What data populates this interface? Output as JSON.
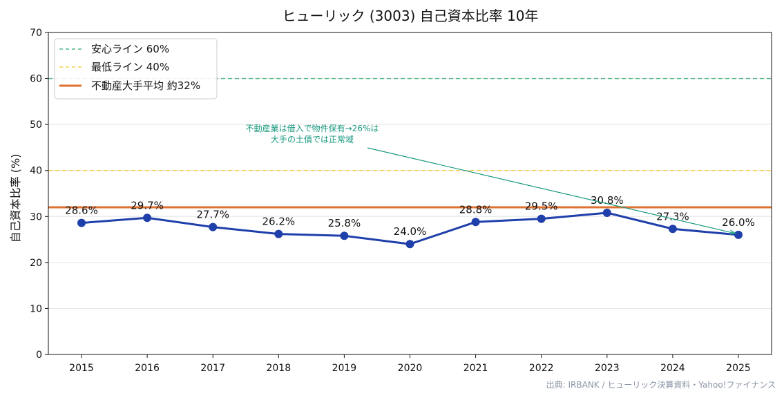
{
  "colors": {
    "line": "#1f3faa",
    "safe_line": "#52b788",
    "min_line": "#f2d04d",
    "avg_line": "#e07030",
    "annotation": "#1a9980",
    "grid": "#e5e5e5",
    "source": "#8a94a6"
  },
  "chart_data": {
    "type": "line",
    "title": "ヒューリック (3003) 自己資本比率 10年",
    "xlabel": "",
    "ylabel": "自己資本比率 (%)",
    "ylim": [
      0,
      70
    ],
    "yticks": [
      "0",
      "10",
      "20",
      "30",
      "40",
      "50",
      "60",
      "70"
    ],
    "grid": "horizontal",
    "legend_position": "top-left",
    "categories": [
      "2015",
      "2016",
      "2017",
      "2018",
      "2019",
      "2020",
      "2021",
      "2022",
      "2023",
      "2024",
      "2025"
    ],
    "series": [
      {
        "values": [
          28.6,
          29.7,
          27.7,
          26.2,
          25.8,
          24.0,
          28.8,
          29.5,
          30.8,
          27.3,
          26.0
        ],
        "labels": [
          "28.6%",
          "29.7%",
          "27.7%",
          "26.2%",
          "25.8%",
          "24.0%",
          "28.8%",
          "29.5%",
          "30.8%",
          "27.3%",
          "26.0%"
        ]
      }
    ],
    "reference_lines": [
      {
        "name": "安心ライン 60%",
        "value": 60,
        "style": "dashed"
      },
      {
        "name": "最低ライン 40%",
        "value": 40,
        "style": "dashed"
      },
      {
        "name": "不動産大手平均 約32%",
        "value": 32,
        "style": "solid"
      }
    ],
    "annotation": {
      "lines": [
        "不動産業は借入で物件保有→26%は",
        "大手の土債では正常域"
      ],
      "points_to": "2025"
    },
    "source": "出典: IRBANK / ヒューリック決算資料・Yahoo!ファイナンス"
  }
}
